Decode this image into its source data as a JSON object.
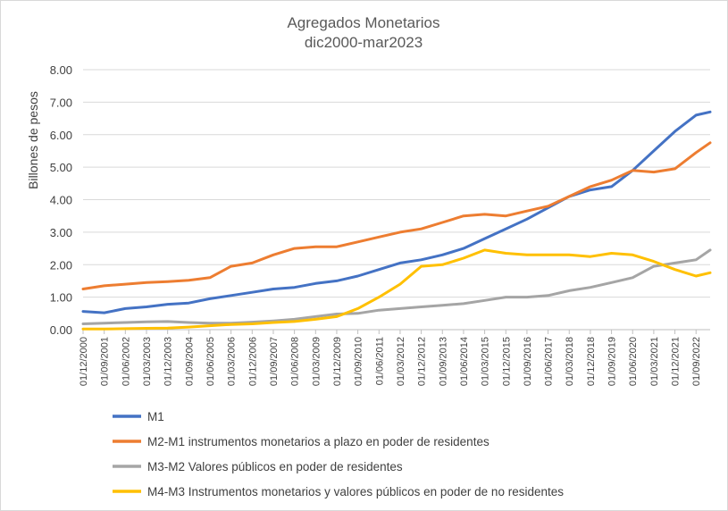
{
  "chart_data": {
    "type": "line",
    "title": "Agregados Monetarios",
    "subtitle": "dic2000-mar2023",
    "ylabel": "Billones de pesos",
    "xlabel": "",
    "ylim": [
      0,
      8
    ],
    "y_ticks": [
      "0.00",
      "1.00",
      "2.00",
      "3.00",
      "4.00",
      "5.00",
      "6.00",
      "7.00",
      "8.00"
    ],
    "x_ticks": [
      "01/12/2000",
      "01/09/2001",
      "01/06/2002",
      "01/03/2003",
      "01/12/2003",
      "01/09/2004",
      "01/06/2005",
      "01/03/2006",
      "01/12/2006",
      "01/09/2007",
      "01/06/2008",
      "01/03/2009",
      "01/12/2009",
      "01/09/2010",
      "01/06/2011",
      "01/03/2012",
      "01/12/2012",
      "01/09/2013",
      "01/06/2014",
      "01/03/2015",
      "01/12/2015",
      "01/09/2016",
      "01/06/2017",
      "01/03/2018",
      "01/12/2018",
      "01/09/2019",
      "01/06/2020",
      "01/03/2021",
      "01/12/2021",
      "01/09/2022"
    ],
    "x_values": [
      2000.917,
      2001.667,
      2002.417,
      2003.167,
      2003.917,
      2004.667,
      2005.417,
      2006.167,
      2006.917,
      2007.667,
      2008.417,
      2009.167,
      2009.917,
      2010.667,
      2011.417,
      2012.167,
      2012.917,
      2013.667,
      2014.417,
      2015.167,
      2015.917,
      2016.667,
      2017.417,
      2018.167,
      2018.917,
      2019.667,
      2020.417,
      2021.167,
      2021.917,
      2022.667,
      2023.167
    ],
    "grid": true,
    "legend_position": "bottom",
    "series": [
      {
        "name": "M1",
        "color": "#4472C4",
        "values": [
          0.56,
          0.52,
          0.65,
          0.7,
          0.78,
          0.82,
          0.95,
          1.05,
          1.15,
          1.25,
          1.3,
          1.42,
          1.5,
          1.65,
          1.85,
          2.05,
          2.15,
          2.3,
          2.5,
          2.8,
          3.1,
          3.4,
          3.75,
          4.1,
          4.3,
          4.4,
          4.9,
          5.5,
          6.1,
          6.6,
          6.7
        ]
      },
      {
        "name": "M2-M1 instrumentos monetarios a plazo en poder de residentes",
        "color": "#ED7D31",
        "values": [
          1.25,
          1.35,
          1.4,
          1.45,
          1.48,
          1.52,
          1.6,
          1.95,
          2.05,
          2.3,
          2.5,
          2.55,
          2.55,
          2.7,
          2.85,
          3.0,
          3.1,
          3.3,
          3.5,
          3.55,
          3.5,
          3.65,
          3.8,
          4.1,
          4.4,
          4.6,
          4.9,
          4.85,
          4.95,
          5.45,
          5.75
        ]
      },
      {
        "name": "M3-M2 Valores públicos en poder de residentes",
        "color": "#A5A5A5",
        "values": [
          0.18,
          0.2,
          0.22,
          0.24,
          0.25,
          0.22,
          0.2,
          0.2,
          0.23,
          0.27,
          0.32,
          0.4,
          0.48,
          0.5,
          0.6,
          0.65,
          0.7,
          0.75,
          0.8,
          0.9,
          1.0,
          1.0,
          1.05,
          1.2,
          1.3,
          1.45,
          1.6,
          1.95,
          2.05,
          2.15,
          2.45
        ]
      },
      {
        "name": "M4-M3 Instrumentos monetarios y valores públicos en poder de no residentes",
        "color": "#FFC000",
        "values": [
          0.02,
          0.02,
          0.03,
          0.04,
          0.05,
          0.08,
          0.12,
          0.16,
          0.18,
          0.22,
          0.25,
          0.32,
          0.4,
          0.65,
          1.0,
          1.4,
          1.95,
          2.0,
          2.2,
          2.45,
          2.35,
          2.3,
          2.3,
          2.3,
          2.25,
          2.35,
          2.3,
          2.1,
          1.85,
          1.65,
          1.75
        ]
      }
    ]
  }
}
